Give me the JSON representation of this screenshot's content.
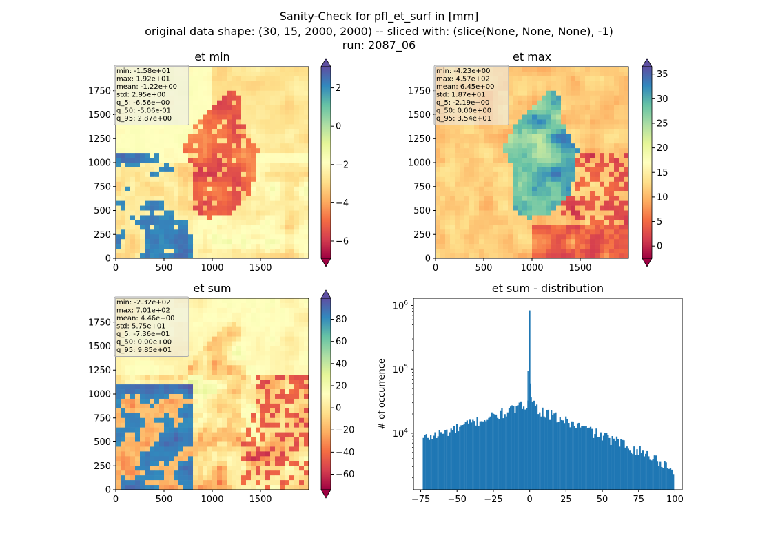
{
  "figure": {
    "title_lines": [
      "Sanity-Check for pfl_et_surf in [mm]",
      "original data shape: (30, 15, 2000, 2000) -- sliced with: (slice(None, None, None), -1)",
      "run: 2087_06"
    ]
  },
  "chart_data": [
    {
      "type": "heatmap",
      "title": "et min",
      "colormap": "Spectral",
      "x_ticks": [
        0,
        500,
        1000,
        1500
      ],
      "y_ticks": [
        0,
        250,
        500,
        750,
        1000,
        1250,
        1500,
        1750
      ],
      "xlim": [
        0,
        2000
      ],
      "ylim": [
        0,
        2000
      ],
      "colorbar": {
        "min": -6.9,
        "max": 3.1,
        "ticks": [
          -6,
          -4,
          -2,
          0,
          2
        ],
        "extend": "both"
      },
      "stats": [
        "min: -1.58e+01",
        "max: 1.92e+01",
        "mean: -1.22e+00",
        "std: 2.95e+00",
        "q_5: -6.56e+00",
        "q_50: -5.06e-01",
        "q_95: 2.87e+00"
      ]
    },
    {
      "type": "heatmap",
      "title": "et max",
      "colormap": "Spectral",
      "x_ticks": [
        0,
        500,
        1000,
        1500
      ],
      "y_ticks": [
        0,
        250,
        500,
        750,
        1000,
        1250,
        1500,
        1750
      ],
      "xlim": [
        0,
        2000
      ],
      "ylim": [
        0,
        2000
      ],
      "colorbar": {
        "min": -2.5,
        "max": 36.5,
        "ticks": [
          0,
          5,
          10,
          15,
          20,
          25,
          30,
          35
        ],
        "extend": "both"
      },
      "stats": [
        "min: -4.23e+00",
        "max: 4.57e+02",
        "mean: 6.45e+00",
        "std: 1.87e+01",
        "q_5: -2.19e+00",
        "q_50: 0.00e+00",
        "q_95: 3.54e+01"
      ]
    },
    {
      "type": "heatmap",
      "title": "et sum",
      "colormap": "Spectral",
      "x_ticks": [
        0,
        500,
        1000,
        1500
      ],
      "y_ticks": [
        0,
        250,
        500,
        750,
        1000,
        1250,
        1500,
        1750
      ],
      "xlim": [
        0,
        2000
      ],
      "ylim": [
        0,
        2000
      ],
      "colorbar": {
        "min": -74,
        "max": 99,
        "ticks": [
          -60,
          -40,
          -20,
          0,
          20,
          40,
          60,
          80
        ],
        "extend": "both"
      },
      "stats": [
        "min: -2.32e+02",
        "max: 7.01e+02",
        "mean: 4.46e+00",
        "std: 5.75e+01",
        "q_5: -7.36e+01",
        "q_50: 0.00e+00",
        "q_95: 9.85e+01"
      ]
    },
    {
      "type": "bar",
      "title": "et sum - distribution",
      "ylabel": "# of occurrence",
      "xlabel": "",
      "log_y": true,
      "color": "#1f77b4",
      "xlim": [
        -80,
        105
      ],
      "ylim": [
        1300,
        1300000
      ],
      "x_ticks": [
        -75,
        -50,
        -25,
        0,
        25,
        50,
        75,
        100
      ],
      "y_ticks": [
        {
          "value": 10000,
          "label_base": "10",
          "label_exp": "4"
        },
        {
          "value": 100000,
          "label_base": "10",
          "label_exp": "5"
        },
        {
          "value": 1000000,
          "label_base": "10",
          "label_exp": "6"
        }
      ],
      "range": [
        -73.6,
        98.5
      ],
      "bin_width": 1,
      "anchors": [
        [
          -74,
          8200
        ],
        [
          -60,
          10000
        ],
        [
          -50,
          11800
        ],
        [
          -40,
          14500
        ],
        [
          -30,
          17000
        ],
        [
          -20,
          20000
        ],
        [
          -10,
          24000
        ],
        [
          -5,
          27000
        ],
        [
          -2,
          30000
        ],
        [
          -1,
          40000
        ],
        [
          -0.5,
          52000
        ],
        [
          0,
          840000
        ],
        [
          0.5,
          50000
        ],
        [
          1,
          38000
        ],
        [
          2,
          31000
        ],
        [
          5,
          25000
        ],
        [
          10,
          21000
        ],
        [
          20,
          17000
        ],
        [
          30,
          14000
        ],
        [
          40,
          11500
        ],
        [
          50,
          9000
        ],
        [
          60,
          7500
        ],
        [
          70,
          6000
        ],
        [
          80,
          4800
        ],
        [
          90,
          3600
        ],
        [
          98,
          2700
        ]
      ]
    }
  ]
}
